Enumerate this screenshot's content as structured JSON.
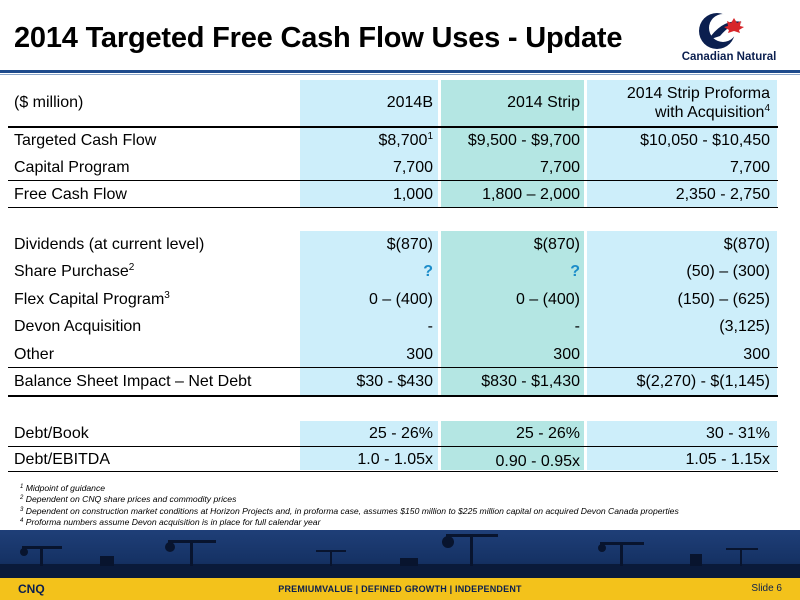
{
  "title": "2014 Targeted Free Cash Flow Uses - Update",
  "logo_text": "Canadian Natural",
  "header": {
    "unit": "($ million)",
    "col1": "2014B",
    "col2": "2014 Strip",
    "col3_line1": "2014 Strip Proforma",
    "col3_line2": "with Acquisition",
    "col3_sup": "4"
  },
  "rows": {
    "targeted_cash_flow": {
      "label": "Targeted Cash Flow",
      "v1": "$8,700",
      "v1_sup": "1",
      "v2": "$9,500 - $9,700",
      "v3": "$10,050 - $10,450"
    },
    "capital_program": {
      "label": "Capital Program",
      "v1": "7,700",
      "v2": "7,700",
      "v3": "7,700"
    },
    "free_cash_flow": {
      "label": "Free Cash Flow",
      "v1": "1,000",
      "v2": "1,800 – 2,000",
      "v3": "2,350 - 2,750"
    },
    "dividends": {
      "label": "Dividends (at current level)",
      "v1": "$(870)",
      "v2": "$(870)",
      "v3": "$(870)"
    },
    "share_purchase": {
      "label": "Share Purchase",
      "label_sup": "2",
      "v1": "?",
      "v2": "?",
      "v3": "(50) – (300)"
    },
    "flex_capital": {
      "label": "Flex Capital Program",
      "label_sup": "3",
      "v1": "0 – (400)",
      "v2": "0 – (400)",
      "v3": "(150) – (625)"
    },
    "devon": {
      "label": "Devon Acquisition",
      "v1": "-",
      "v2": "-",
      "v3": "(3,125)"
    },
    "other": {
      "label": "Other",
      "v1": "300",
      "v2": "300",
      "v3": "300"
    },
    "balance_sheet": {
      "label": "Balance Sheet Impact – Net Debt",
      "v1": "$30 - $430",
      "v2": "$830 - $1,430",
      "v3": "$(2,270) - $(1,145)"
    },
    "debt_book": {
      "label": "Debt/Book",
      "v1": "25 - 26%",
      "v2": "25 - 26%",
      "v3": "30 - 31%"
    },
    "debt_ebitda": {
      "label": "Debt/EBITDA",
      "v1": "1.0 - 1.05x",
      "v2": "0.90 - 0.95x",
      "v3": "1.05 - 1.15x"
    }
  },
  "footnotes": [
    {
      "num": "1",
      "text": "Midpoint of guidance"
    },
    {
      "num": "2",
      "text": "Dependent on CNQ share prices and commodity prices"
    },
    {
      "num": "3",
      "text": "Dependent on construction market conditions at Horizon Projects and, in proforma case, assumes $150 million to $225 million capital on acquired Devon Canada properties"
    },
    {
      "num": "4",
      "text": "Proforma numbers assume Devon acquisition is in place for full calendar year"
    }
  ],
  "footer": {
    "ticker": "CNQ",
    "tagline": "PREMIUMVALUE  |  DEFINED GROWTH  |  INDEPENDENT",
    "slide": "Slide 6"
  },
  "colors": {
    "accent_navy": "#0b1f4f",
    "rule_blue": "#1e4b8c",
    "col_light_blue": "#cdeefa",
    "col_teal": "#b4e6e3",
    "footer_yellow": "#f3c21b",
    "question_blue": "#1b8cc9"
  }
}
